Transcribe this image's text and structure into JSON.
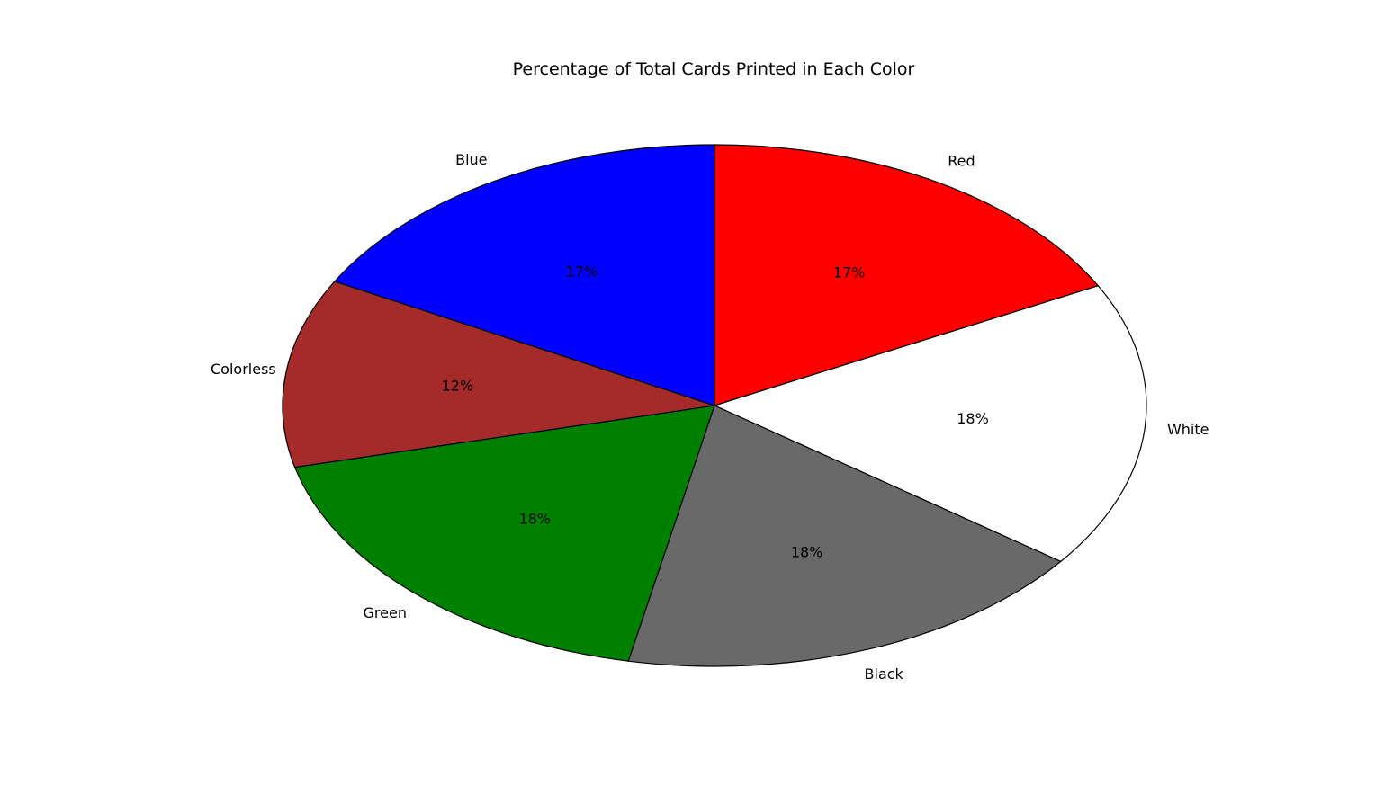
{
  "chart_data": {
    "type": "pie",
    "title": "Percentage of Total Cards Printed in Each Color",
    "start_angle_deg": 90,
    "direction": "clockwise",
    "slices": [
      {
        "label": "Red",
        "percent": 17.4,
        "percent_label": "17%",
        "color": "#ff0000"
      },
      {
        "label": "White",
        "percent": 17.8,
        "percent_label": "18%",
        "color": "#ffffff"
      },
      {
        "label": "Black",
        "percent": 18.0,
        "percent_label": "18%",
        "color": "#696969"
      },
      {
        "label": "Green",
        "percent": 18.0,
        "percent_label": "18%",
        "color": "#008000"
      },
      {
        "label": "Colorless",
        "percent": 11.7,
        "percent_label": "12%",
        "color": "#a52a2a"
      },
      {
        "label": "Blue",
        "percent": 17.1,
        "percent_label": "17%",
        "color": "#0000ff"
      }
    ]
  }
}
